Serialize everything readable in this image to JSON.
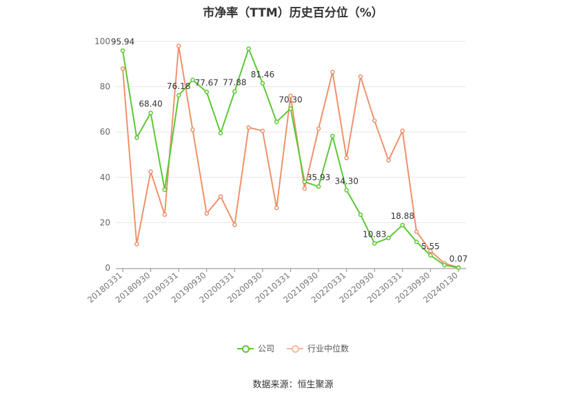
{
  "chart_data": {
    "type": "line",
    "title": "市净率（TTM）历史百分位（%）",
    "x": [
      "20180331",
      "20180630",
      "20180930",
      "20181231",
      "20190331",
      "20190630",
      "20190930",
      "20191231",
      "20200331",
      "20200630",
      "20200930",
      "20201231",
      "20210331",
      "20210630",
      "20210930",
      "20211231",
      "20220331",
      "20220630",
      "20220930",
      "20221231",
      "20230331",
      "20230630",
      "20230930",
      "20231231",
      "20240130"
    ],
    "x_tick_labels": [
      "20180331",
      "20180930",
      "20190331",
      "20190930",
      "20200331",
      "20200930",
      "20210331",
      "20210930",
      "20220331",
      "20220930",
      "20230331",
      "20230930",
      "20240130"
    ],
    "x_tick_indices": [
      0,
      2,
      4,
      6,
      8,
      10,
      12,
      14,
      16,
      18,
      20,
      22,
      24
    ],
    "ylim": [
      0,
      100
    ],
    "y_ticks": [
      0,
      20,
      40,
      60,
      80,
      100
    ],
    "grid": true,
    "legend_position": "bottom",
    "series": [
      {
        "name": "公司",
        "color": "#5ac832",
        "values": [
          95.94,
          57.5,
          68.4,
          34.5,
          76.18,
          83.0,
          77.67,
          59.5,
          77.88,
          96.8,
          81.46,
          64.5,
          70.3,
          38.0,
          35.93,
          58.2,
          34.3,
          23.5,
          10.83,
          13.2,
          18.88,
          11.5,
          5.55,
          1.2,
          0.07
        ],
        "labels": [
          "95.94",
          null,
          "68.40",
          null,
          "76.18",
          null,
          "77.67",
          null,
          "77.88",
          null,
          "81.46",
          null,
          "70.30",
          null,
          "35.93",
          null,
          "34.30",
          null,
          "10.83",
          null,
          "18.88",
          null,
          "5.55",
          null,
          "0.07"
        ]
      },
      {
        "name": "行业中位数",
        "color": "#f0906a",
        "values": [
          88.0,
          10.5,
          42.5,
          23.5,
          98.0,
          61.0,
          24.0,
          31.5,
          19.0,
          62.0,
          60.5,
          26.5,
          76.0,
          35.0,
          61.5,
          86.5,
          48.5,
          84.5,
          65.0,
          47.5,
          60.5,
          16.0,
          7.5,
          2.0,
          0.2
        ]
      }
    ]
  },
  "source_note": "数据来源：恒生聚源"
}
